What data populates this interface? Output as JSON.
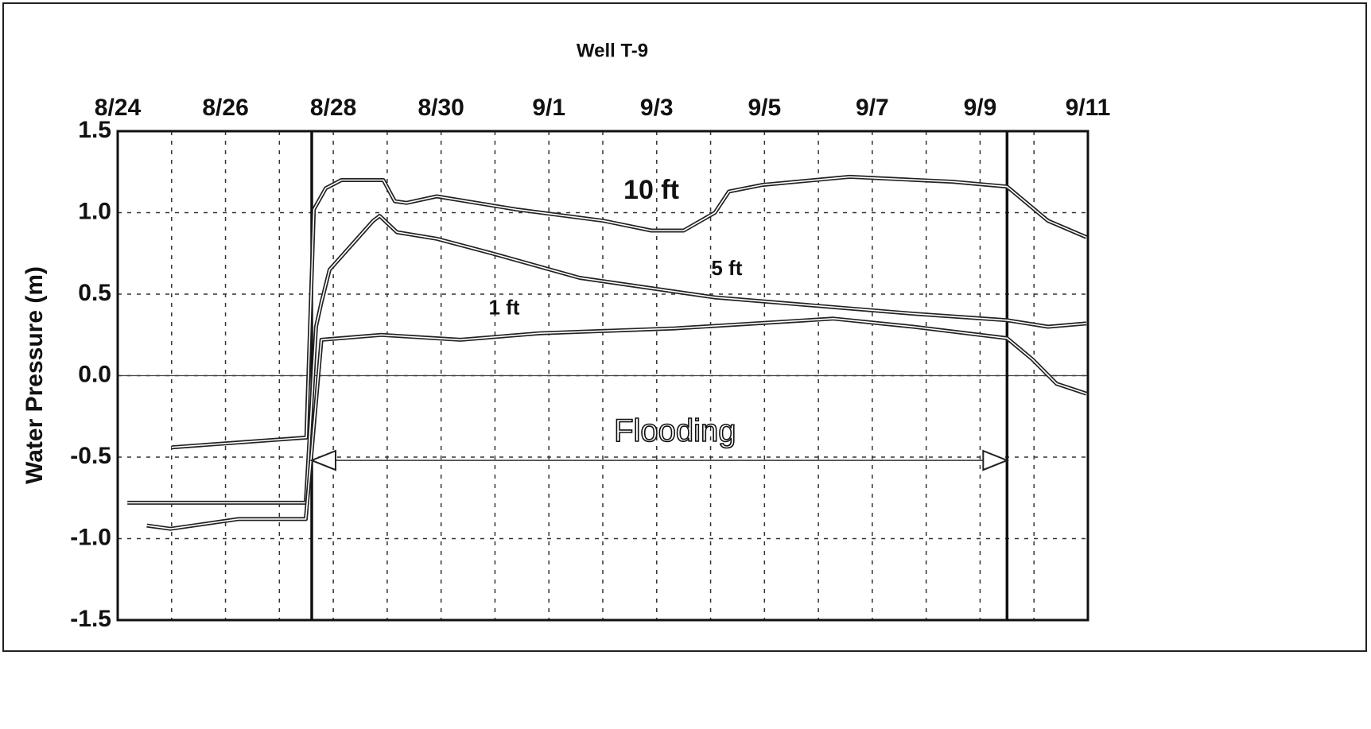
{
  "chart_data": {
    "type": "line",
    "title": "Well T-9",
    "ylabel": "Water Pressure (m)",
    "xlim": [
      0,
      18
    ],
    "xticks": [
      {
        "value": 0,
        "label": "8/24"
      },
      {
        "value": 2,
        "label": "8/26"
      },
      {
        "value": 4,
        "label": "8/28"
      },
      {
        "value": 6,
        "label": "8/30"
      },
      {
        "value": 8,
        "label": "9/1"
      },
      {
        "value": 10,
        "label": "9/3"
      },
      {
        "value": 12,
        "label": "9/5"
      },
      {
        "value": 14,
        "label": "9/7"
      },
      {
        "value": 16,
        "label": "9/9"
      },
      {
        "value": 18,
        "label": "9/11"
      }
    ],
    "ylim": [
      -1.5,
      1.5
    ],
    "yticks": [
      {
        "value": -1.5,
        "label": "-1.5"
      },
      {
        "value": -1,
        "label": "-1.0"
      },
      {
        "value": -0.5,
        "label": "-0.5"
      },
      {
        "value": 0,
        "label": "0.0"
      },
      {
        "value": 0.5,
        "label": "0.5"
      },
      {
        "value": 1,
        "label": "1.0"
      },
      {
        "value": 1.5,
        "label": "1.5"
      }
    ],
    "grid": true,
    "series": [
      {
        "name": "10 ft",
        "color": "#222222",
        "x": [
          1.0,
          3.5,
          3.64,
          3.86,
          4.15,
          4.93,
          5.14,
          5.36,
          5.92,
          7.39,
          9.01,
          9.9,
          10.5,
          11.08,
          11.34,
          11.96,
          13.58,
          15.49,
          16.5,
          17.26,
          17.97
        ],
        "values": [
          -0.44,
          -0.38,
          1.02,
          1.15,
          1.2,
          1.2,
          1.07,
          1.06,
          1.1,
          1.02,
          0.95,
          0.89,
          0.89,
          1.0,
          1.13,
          1.17,
          1.22,
          1.19,
          1.16,
          0.95,
          0.85
        ]
      },
      {
        "name": "5 ft",
        "color": "#222222",
        "x": [
          0.18,
          3.49,
          3.68,
          3.78,
          3.93,
          4.74,
          4.86,
          5.18,
          5.92,
          6.95,
          8.57,
          11.08,
          12.55,
          14.76,
          16.5,
          17.26,
          17.97
        ],
        "values": [
          -0.78,
          -0.78,
          0.3,
          0.45,
          0.65,
          0.95,
          0.98,
          0.88,
          0.84,
          0.75,
          0.6,
          0.48,
          0.44,
          0.38,
          0.34,
          0.3,
          0.32
        ]
      },
      {
        "name": "1 ft",
        "color": "#222222",
        "x": [
          0.54,
          0.98,
          2.24,
          3.49,
          3.78,
          4.89,
          6.36,
          7.83,
          10.33,
          13.28,
          14.76,
          16.5,
          16.97,
          17.42,
          17.97
        ],
        "values": [
          -0.92,
          -0.94,
          -0.88,
          -0.88,
          0.22,
          0.25,
          0.22,
          0.26,
          0.29,
          0.35,
          0.3,
          0.23,
          0.1,
          -0.05,
          -0.11
        ]
      }
    ],
    "vlines": [
      3.6,
      16.5
    ],
    "annotations": [
      {
        "text": "10 ft",
        "x": 9.9,
        "y": 1.13
      },
      {
        "text": "5 ft",
        "x": 11.3,
        "y": 0.65
      },
      {
        "text": "1 ft",
        "x": 7.17,
        "y": 0.41
      },
      {
        "text": "Flooding",
        "x": 10.34,
        "y": -0.35,
        "arrow": [
          3.6,
          16.5
        ],
        "arrow_y": -0.52
      }
    ]
  }
}
